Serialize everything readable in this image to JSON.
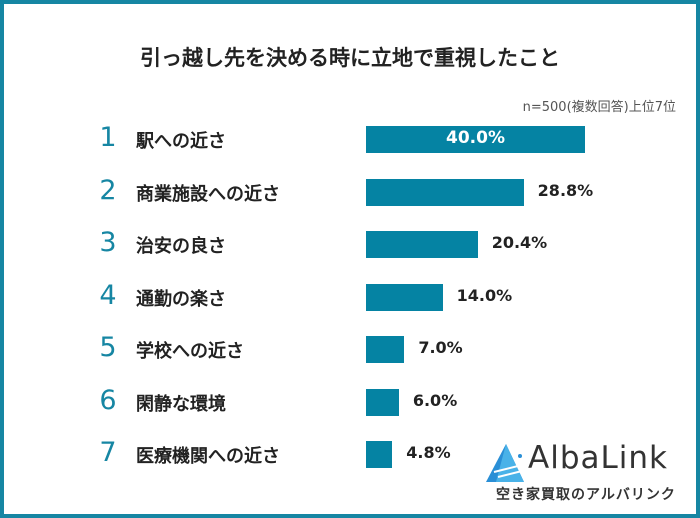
{
  "chart_data": {
    "type": "bar",
    "orientation": "horizontal",
    "title": "引っ越し先を決める時に立地で重視したこと",
    "note": "n=500(複数回答)上位7位",
    "ranks": [
      "1",
      "2",
      "3",
      "4",
      "5",
      "6",
      "7"
    ],
    "categories": [
      "駅への近さ",
      "商業施設への近さ",
      "治安の良さ",
      "通勤の楽さ",
      "学校への近さ",
      "閑静な環境",
      "医療機関への近さ"
    ],
    "values": [
      40.0,
      28.8,
      20.4,
      14.0,
      7.0,
      6.0,
      4.8
    ],
    "value_labels": [
      "40.0%",
      "28.8%",
      "20.4%",
      "14.0%",
      "7.0%",
      "6.0%",
      "4.8%"
    ],
    "unit": "%",
    "grid": false,
    "colors": {
      "bar": "#0583a3",
      "rank": "#1686a3",
      "border": "#1686a3"
    }
  },
  "logo": {
    "name": "AlbaLink",
    "tagline": "空き家買取のアルバリンク"
  }
}
